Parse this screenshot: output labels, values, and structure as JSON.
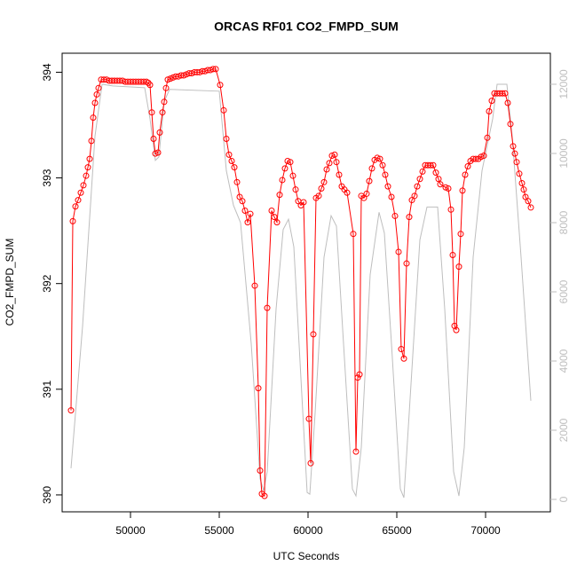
{
  "chart_data": {
    "type": "line",
    "title": "ORCAS RF01 CO2_FMPD_SUM",
    "xlabel": "UTC Seconds",
    "ylabel": "CO2_FMPD_SUM",
    "xlim": [
      46150,
      73650
    ],
    "ylim": [
      389.84,
      394.18
    ],
    "y2lim": [
      -359,
      12897
    ],
    "xticks": [
      50000,
      55000,
      60000,
      65000,
      70000
    ],
    "yticks": [
      390,
      391,
      392,
      393,
      394
    ],
    "y2ticks": [
      0,
      2000,
      4000,
      6000,
      8000,
      10000,
      12000
    ],
    "y2color": "#bebebe",
    "series": [
      {
        "color": "#ff0000",
        "markers": true,
        "x": [
          46650,
          46750,
          46900,
          47050,
          47200,
          47350,
          47500,
          47600,
          47700,
          47800,
          47900,
          48000,
          48100,
          48200,
          48350,
          48500,
          48650,
          48800,
          48950,
          49100,
          49250,
          49400,
          49550,
          49700,
          49850,
          50000,
          50150,
          50300,
          50450,
          50600,
          50750,
          50900,
          51000,
          51100,
          51200,
          51300,
          51400,
          51550,
          51650,
          51800,
          51900,
          52000,
          52100,
          52250,
          52400,
          52550,
          52700,
          52850,
          53000,
          53150,
          53300,
          53450,
          53600,
          53750,
          53900,
          54050,
          54200,
          54350,
          54500,
          54650,
          54800,
          55050,
          55250,
          55400,
          55550,
          55700,
          55850,
          56000,
          56150,
          56300,
          56450,
          56600,
          56750,
          57000,
          57200,
          57300,
          57400,
          57550,
          57700,
          57950,
          58100,
          58250,
          58400,
          58550,
          58700,
          58850,
          59000,
          59150,
          59300,
          59450,
          59600,
          59750,
          60050,
          60150,
          60300,
          60450,
          60600,
          60750,
          60900,
          61050,
          61200,
          61350,
          61500,
          61600,
          61750,
          61900,
          62050,
          62200,
          62550,
          62700,
          62800,
          62900,
          63000,
          63150,
          63300,
          63450,
          63600,
          63750,
          63900,
          64050,
          64200,
          64350,
          64500,
          64700,
          64900,
          65100,
          65250,
          65400,
          65550,
          65700,
          65850,
          66000,
          66150,
          66300,
          66450,
          66600,
          66750,
          66900,
          67050,
          67200,
          67350,
          67450,
          67750,
          67900,
          68050,
          68150,
          68250,
          68350,
          68500,
          68600,
          68700,
          68850,
          69000,
          69150,
          69300,
          69450,
          69600,
          69750,
          69900,
          70100,
          70200,
          70350,
          70500,
          70650,
          70800,
          70950,
          71100,
          71250,
          71400,
          71550,
          71650,
          71750,
          71900,
          72050,
          72150,
          72250,
          72400,
          72550
        ],
        "values": [
          390.8,
          392.59,
          392.73,
          392.79,
          392.86,
          392.93,
          393.02,
          393.1,
          393.18,
          393.35,
          393.57,
          393.71,
          393.79,
          393.85,
          393.93,
          393.93,
          393.93,
          393.92,
          393.92,
          393.92,
          393.92,
          393.92,
          393.92,
          393.91,
          393.91,
          393.91,
          393.91,
          393.91,
          393.91,
          393.91,
          393.91,
          393.91,
          393.9,
          393.88,
          393.62,
          393.37,
          393.23,
          393.24,
          393.43,
          393.62,
          393.72,
          393.85,
          393.93,
          393.94,
          393.95,
          393.96,
          393.96,
          393.97,
          393.97,
          393.98,
          393.99,
          393.99,
          394.0,
          394.0,
          394.0,
          394.01,
          394.01,
          394.02,
          394.02,
          394.03,
          394.03,
          393.88,
          393.64,
          393.37,
          393.22,
          393.16,
          393.1,
          392.96,
          392.82,
          392.78,
          392.69,
          392.58,
          392.66,
          391.98,
          391.01,
          390.23,
          390.01,
          389.99,
          391.77,
          392.69,
          392.63,
          392.58,
          392.84,
          392.98,
          393.09,
          393.16,
          393.15,
          393.02,
          392.89,
          392.78,
          392.74,
          392.77,
          390.72,
          390.3,
          391.52,
          392.81,
          392.83,
          392.9,
          392.96,
          393.08,
          393.14,
          393.21,
          393.22,
          393.15,
          393.03,
          392.92,
          392.89,
          392.86,
          392.47,
          390.41,
          391.11,
          391.14,
          392.83,
          392.81,
          392.85,
          392.97,
          393.09,
          393.17,
          393.19,
          393.18,
          393.12,
          393.03,
          392.92,
          392.82,
          392.64,
          392.3,
          391.38,
          391.29,
          392.19,
          392.63,
          392.79,
          392.83,
          392.92,
          392.99,
          393.06,
          393.12,
          393.12,
          393.12,
          393.12,
          393.05,
          392.99,
          392.94,
          392.91,
          392.9,
          392.7,
          392.27,
          391.6,
          391.56,
          392.16,
          392.47,
          392.88,
          393.03,
          393.11,
          393.16,
          393.18,
          393.18,
          393.18,
          393.2,
          393.21,
          393.38,
          393.63,
          393.73,
          393.8,
          393.8,
          393.8,
          393.8,
          393.8,
          393.71,
          393.51,
          393.3,
          393.23,
          393.15,
          393.04,
          392.95,
          392.89,
          392.82,
          392.78,
          392.72
        ]
      },
      {
        "color": "#bebebe",
        "axis": "y2",
        "x": [
          46650,
          47300,
          48000,
          48400,
          49000,
          50800,
          51100,
          51400,
          51600,
          51900,
          52200,
          55000,
          55400,
          55800,
          56200,
          56800,
          57300,
          57500,
          57700,
          58200,
          58600,
          58900,
          59200,
          59600,
          59950,
          60100,
          60400,
          60900,
          61300,
          61600,
          62000,
          62500,
          62700,
          63000,
          63500,
          64000,
          64300,
          64700,
          65200,
          65400,
          65700,
          66300,
          66700,
          67300,
          67700,
          68200,
          68500,
          68800,
          69300,
          69800,
          70400,
          70650,
          71200,
          71500,
          72000,
          72550
        ],
        "values": [
          900,
          5000,
          10500,
          12000,
          11950,
          11900,
          11000,
          9800,
          9900,
          11500,
          11850,
          11800,
          9500,
          8500,
          8000,
          4500,
          600,
          250,
          800,
          5500,
          7800,
          8100,
          7300,
          3500,
          200,
          150,
          2500,
          7000,
          8200,
          7900,
          4500,
          300,
          100,
          1500,
          6500,
          8300,
          7700,
          4500,
          300,
          50,
          2500,
          7500,
          8450,
          8450,
          5500,
          800,
          100,
          1500,
          7000,
          9500,
          11000,
          12000,
          12000,
          10500,
          7000,
          2850
        ]
      }
    ]
  }
}
